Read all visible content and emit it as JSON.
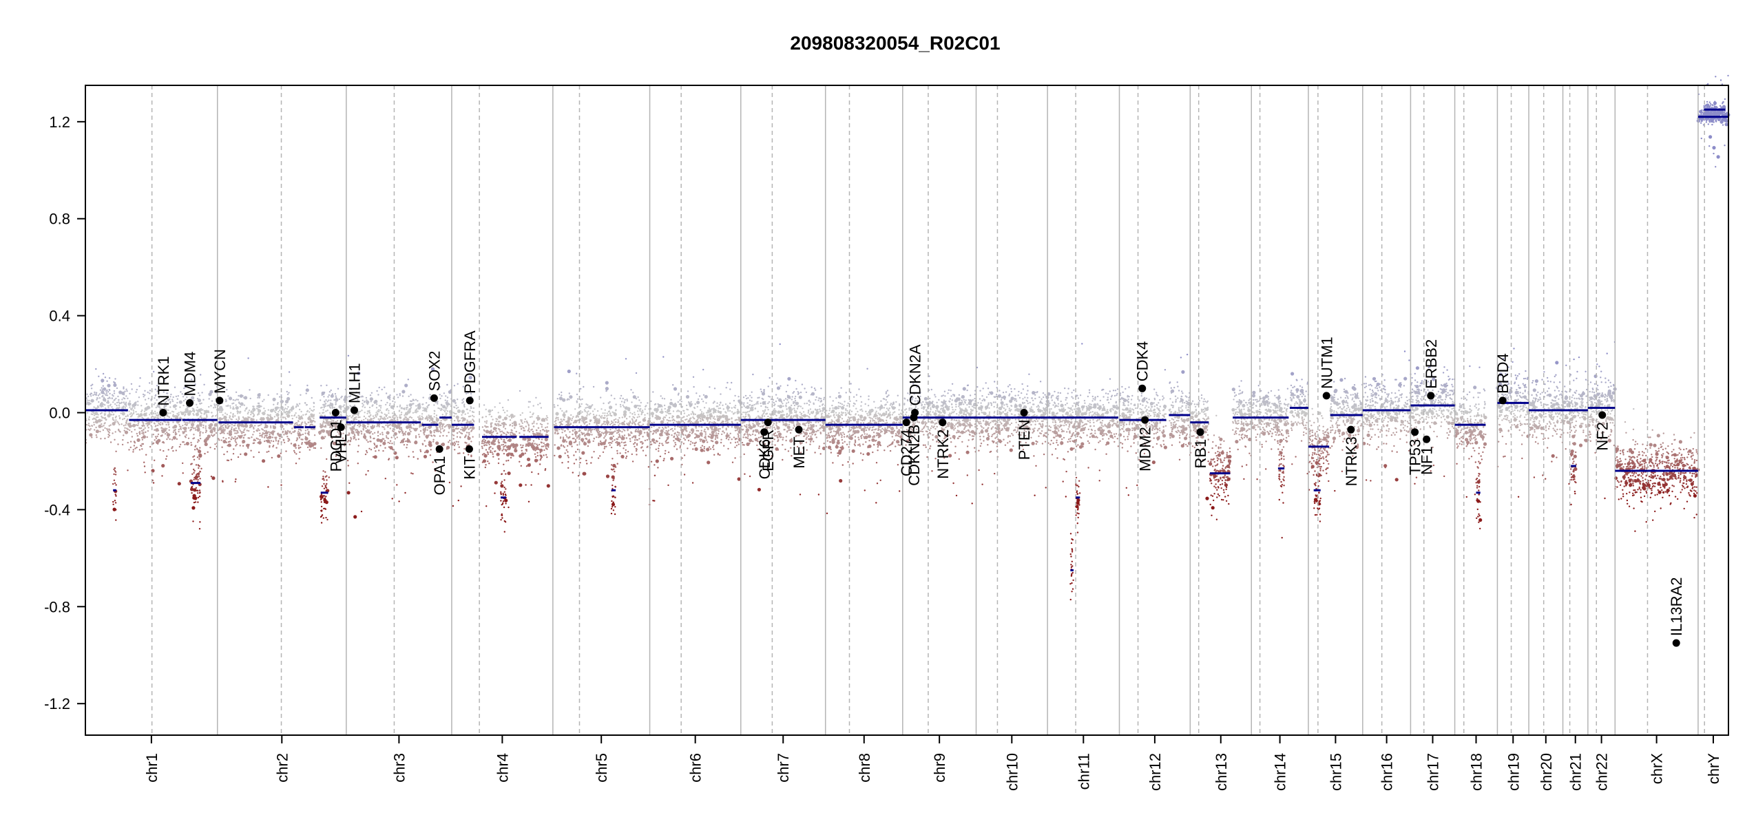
{
  "chart_data": {
    "type": "scatter",
    "title": "209808320054_R02C01",
    "xlabel": "",
    "ylabel": "",
    "ylim": [
      -1.33,
      1.35
    ],
    "yticks": [
      1.2,
      0.8,
      0.4,
      0.0,
      -0.4,
      -0.8,
      -1.2
    ],
    "ytick_labels": [
      "1.2",
      "0.8",
      "0.4",
      "0.0",
      "-0.4",
      "-0.8",
      "-1.2"
    ],
    "chromosomes": [
      {
        "name": "chr1",
        "start": 0,
        "end": 248
      },
      {
        "name": "chr2",
        "start": 248,
        "end": 490
      },
      {
        "name": "chr3",
        "start": 490,
        "end": 688
      },
      {
        "name": "chr4",
        "start": 688,
        "end": 878
      },
      {
        "name": "chr5",
        "start": 878,
        "end": 1060
      },
      {
        "name": "chr6",
        "start": 1060,
        "end": 1231
      },
      {
        "name": "chr7",
        "start": 1231,
        "end": 1390
      },
      {
        "name": "chr8",
        "start": 1390,
        "end": 1535
      },
      {
        "name": "chr9",
        "start": 1535,
        "end": 1673
      },
      {
        "name": "chr10",
        "start": 1673,
        "end": 1807
      },
      {
        "name": "chr11",
        "start": 1807,
        "end": 1942
      },
      {
        "name": "chr12",
        "start": 1942,
        "end": 2075
      },
      {
        "name": "chr13",
        "start": 2075,
        "end": 2190
      },
      {
        "name": "chr14",
        "start": 2190,
        "end": 2297
      },
      {
        "name": "chr15",
        "start": 2297,
        "end": 2399
      },
      {
        "name": "chr16",
        "start": 2399,
        "end": 2489
      },
      {
        "name": "chr17",
        "start": 2489,
        "end": 2572
      },
      {
        "name": "chr18",
        "start": 2572,
        "end": 2652
      },
      {
        "name": "chr19",
        "start": 2652,
        "end": 2711
      },
      {
        "name": "chr20",
        "start": 2711,
        "end": 2775
      },
      {
        "name": "chr21",
        "start": 2775,
        "end": 2822
      },
      {
        "name": "chr22",
        "start": 2822,
        "end": 2873
      },
      {
        "name": "chrX",
        "start": 2873,
        "end": 3029
      },
      {
        "name": "chrY",
        "start": 3029,
        "end": 3086
      }
    ],
    "centromeres": [
      125,
      368,
      580,
      740,
      928,
      1119,
      1290,
      1435,
      1583,
      1713,
      1860,
      1977,
      2091,
      2206,
      2315,
      2435,
      2514,
      2589,
      2678,
      2739,
      2788,
      2838,
      2934,
      3041
    ],
    "segments": [
      {
        "x0": 0,
        "x1": 80,
        "y": 0.01
      },
      {
        "x0": 82,
        "x1": 180,
        "y": -0.03
      },
      {
        "x0": 182,
        "x1": 248,
        "y": -0.03
      },
      {
        "x0": 250,
        "x1": 390,
        "y": -0.04
      },
      {
        "x0": 392,
        "x1": 410,
        "y": -0.06
      },
      {
        "x0": 412,
        "x1": 432,
        "y": -0.06
      },
      {
        "x0": 440,
        "x1": 490,
        "y": -0.02
      },
      {
        "x0": 490,
        "x1": 630,
        "y": -0.04
      },
      {
        "x0": 632,
        "x1": 663,
        "y": -0.05
      },
      {
        "x0": 665,
        "x1": 688,
        "y": -0.02
      },
      {
        "x0": 688,
        "x1": 730,
        "y": -0.05
      },
      {
        "x0": 745,
        "x1": 810,
        "y": -0.1
      },
      {
        "x0": 815,
        "x1": 870,
        "y": -0.1
      },
      {
        "x0": 880,
        "x1": 1060,
        "y": -0.06
      },
      {
        "x0": 1060,
        "x1": 1231,
        "y": -0.05
      },
      {
        "x0": 1231,
        "x1": 1390,
        "y": -0.03
      },
      {
        "x0": 1390,
        "x1": 1535,
        "y": -0.05
      },
      {
        "x0": 1535,
        "x1": 1673,
        "y": -0.02
      },
      {
        "x0": 1673,
        "x1": 1807,
        "y": -0.02
      },
      {
        "x0": 1807,
        "x1": 1940,
        "y": -0.02
      },
      {
        "x0": 1942,
        "x1": 2030,
        "y": -0.03
      },
      {
        "x0": 2035,
        "x1": 2075,
        "y": -0.01
      },
      {
        "x0": 2075,
        "x1": 2110,
        "y": -0.04
      },
      {
        "x0": 2112,
        "x1": 2150,
        "y": -0.25
      },
      {
        "x0": 2155,
        "x1": 2190,
        "y": -0.02
      },
      {
        "x0": 2190,
        "x1": 2260,
        "y": -0.02
      },
      {
        "x0": 2262,
        "x1": 2297,
        "y": 0.02
      },
      {
        "x0": 2297,
        "x1": 2336,
        "y": -0.14
      },
      {
        "x0": 2338,
        "x1": 2399,
        "y": -0.01
      },
      {
        "x0": 2399,
        "x1": 2489,
        "y": 0.01
      },
      {
        "x0": 2489,
        "x1": 2572,
        "y": 0.03
      },
      {
        "x0": 2572,
        "x1": 2630,
        "y": -0.05
      },
      {
        "x0": 2652,
        "x1": 2711,
        "y": 0.04
      },
      {
        "x0": 2711,
        "x1": 2775,
        "y": 0.01
      },
      {
        "x0": 2775,
        "x1": 2822,
        "y": 0.01
      },
      {
        "x0": 2822,
        "x1": 2873,
        "y": 0.02
      },
      {
        "x0": 2873,
        "x1": 3029,
        "y": -0.24
      },
      {
        "x0": 3029,
        "x1": 3086,
        "y": 1.22
      },
      {
        "x0": 3040,
        "x1": 3080,
        "y": 1.25
      },
      {
        "x0": 52,
        "x1": 58,
        "y": -0.32
      },
      {
        "x0": 198,
        "x1": 216,
        "y": -0.29
      },
      {
        "x0": 442,
        "x1": 456,
        "y": -0.33
      },
      {
        "x0": 780,
        "x1": 790,
        "y": -0.35
      },
      {
        "x0": 988,
        "x1": 996,
        "y": -0.32
      },
      {
        "x0": 1860,
        "x1": 1868,
        "y": -0.35
      },
      {
        "x0": 1850,
        "x1": 1856,
        "y": -0.65
      },
      {
        "x0": 2307,
        "x1": 2320,
        "y": -0.32
      },
      {
        "x0": 2240,
        "x1": 2252,
        "y": -0.23
      },
      {
        "x0": 2612,
        "x1": 2620,
        "y": -0.33
      },
      {
        "x0": 2790,
        "x1": 2800,
        "y": -0.22
      }
    ],
    "genes": [
      {
        "name": "NTRK1",
        "x": 146,
        "y": 0.0,
        "label_side": "above"
      },
      {
        "name": "MDM4",
        "x": 196,
        "y": 0.04,
        "label_side": "above"
      },
      {
        "name": "MYCN",
        "x": 252,
        "y": 0.05,
        "label_side": "above"
      },
      {
        "name": "PDGD1",
        "x": 470,
        "y": 0.0,
        "label_side": "below"
      },
      {
        "name": "VHL",
        "x": 480,
        "y": -0.06,
        "label_side": "below"
      },
      {
        "name": "MLH1",
        "x": 505,
        "y": 0.01,
        "label_side": "above"
      },
      {
        "name": "SOX2",
        "x": 655,
        "y": 0.06,
        "label_side": "above"
      },
      {
        "name": "OPA1",
        "x": 665,
        "y": -0.15,
        "label_side": "below"
      },
      {
        "name": "PDGFRA",
        "x": 722,
        "y": 0.05,
        "label_side": "above"
      },
      {
        "name": "KIT",
        "x": 721,
        "y": -0.15,
        "label_side": "below"
      },
      {
        "name": "EGFR",
        "x": 1282,
        "y": -0.04,
        "label_side": "below"
      },
      {
        "name": "CDK6",
        "x": 1275,
        "y": -0.08,
        "label_side": "below"
      },
      {
        "name": "MET",
        "x": 1340,
        "y": -0.07,
        "label_side": "below"
      },
      {
        "name": "CD274",
        "x": 1542,
        "y": -0.04,
        "label_side": "below"
      },
      {
        "name": "CDKN2A",
        "x": 1558,
        "y": 0.0,
        "label_side": "above"
      },
      {
        "name": "CDKN2B",
        "x": 1556,
        "y": -0.02,
        "label_side": "below"
      },
      {
        "name": "NTRK2",
        "x": 1610,
        "y": -0.04,
        "label_side": "below"
      },
      {
        "name": "PTEN",
        "x": 1763,
        "y": 0.0,
        "label_side": "below"
      },
      {
        "name": "CDK4",
        "x": 1985,
        "y": 0.1,
        "label_side": "above"
      },
      {
        "name": "MDM2",
        "x": 1990,
        "y": -0.03,
        "label_side": "below"
      },
      {
        "name": "RB1",
        "x": 2094,
        "y": -0.08,
        "label_side": "below"
      },
      {
        "name": "NUTM1",
        "x": 2331,
        "y": 0.07,
        "label_side": "above"
      },
      {
        "name": "NTRK3",
        "x": 2377,
        "y": -0.07,
        "label_side": "below"
      },
      {
        "name": "TP53",
        "x": 2497,
        "y": -0.08,
        "label_side": "below"
      },
      {
        "name": "NF1",
        "x": 2519,
        "y": -0.11,
        "label_side": "below"
      },
      {
        "name": "ERBB2",
        "x": 2527,
        "y": 0.07,
        "label_side": "above"
      },
      {
        "name": "BRD4",
        "x": 2662,
        "y": 0.05,
        "label_side": "above"
      },
      {
        "name": "NF2",
        "x": 2849,
        "y": -0.01,
        "label_side": "below"
      },
      {
        "name": "IL13RA2",
        "x": 2988,
        "y": -0.95,
        "label_side": "above"
      }
    ],
    "grid": false,
    "legend": "none"
  },
  "colors": {
    "segment": "#00008b",
    "gene_point": "#000000",
    "gain": "#8c8cc8",
    "neutral": "#c8c8c8",
    "loss": "#8b1a1a",
    "boundary_line": "#b4b4b4",
    "centromere_line": "#b4b4b4"
  }
}
